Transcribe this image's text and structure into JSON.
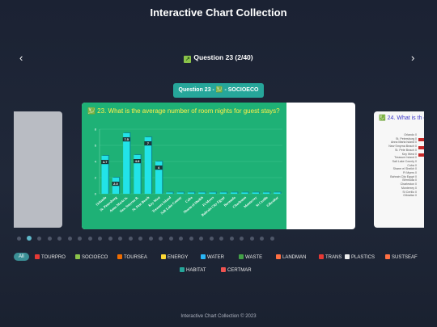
{
  "page": {
    "title": "Interactive Chart Collection",
    "footer": "Interactive Chart Collection © 2023"
  },
  "nav": {
    "prev_icon": "‹",
    "next_icon": "›",
    "question_header": "Question 23 (2/40)",
    "header_icon": "chart-increasing-icon"
  },
  "badge": {
    "text": "Question 23 - 💹 - SOCIOECO"
  },
  "card": {
    "title": "💹 23. What is the average number of room nights for guest stays?"
  },
  "right_card": {
    "title": "💹 24. What is th community on a",
    "labels": [
      "Orlando",
      "St. Petersburg",
      "Anna Maria Island",
      "New Smyrna Beach",
      "St. Pete Beach",
      "Key West",
      "Treasure Island",
      "Salt Lake County",
      "Cuba",
      "Sharm el Sheikh",
      "Ft Myers",
      "Bahrain City Egypt",
      "Bermuda",
      "Charleston",
      "Monterrey",
      "St Cerillo",
      "Gibraltar"
    ],
    "zero": "0"
  },
  "chart_data": {
    "type": "bar",
    "categories": [
      "Orlando",
      "St. Petersburg",
      "Anna Maria Is.",
      "New Smyrna B.",
      "St. Pete Beach",
      "Key West",
      "Treasure Island",
      "Salt Lake County",
      "Cuba",
      "Sharm el Sheikh",
      "Ft Myers",
      "Bahrain City Egypt",
      "Bermuda",
      "Charleston",
      "Monterrey",
      "St Cerillo",
      "Gibraltar"
    ],
    "values": [
      4.7,
      2.0,
      7.5,
      4.8,
      7.0,
      4.0,
      0,
      0,
      0,
      0,
      0,
      0,
      0,
      0,
      0,
      0,
      0
    ],
    "labels": [
      "4.7",
      "2.0",
      "7.5",
      "4.8",
      "7",
      "4",
      "",
      "",
      "",
      "",
      "",
      "",
      "",
      "",
      "",
      "",
      ""
    ],
    "yticks": [
      "0",
      "2",
      "4",
      "6",
      "8"
    ],
    "ylim": [
      0,
      8
    ],
    "title": "",
    "xlabel": "",
    "ylabel": "",
    "colors": {
      "bar": "#22e3e8",
      "label_bg": "#1a1a1a"
    }
  },
  "carousel": {
    "count": 26,
    "active_index": 1
  },
  "filters": [
    {
      "label": "All",
      "active": true,
      "icon": "all"
    },
    {
      "label": "TOURPRO",
      "icon": "magnet-icon",
      "color": "#e53935"
    },
    {
      "label": "SOCIOECO",
      "icon": "chart-increasing-icon",
      "color": "#8bc34a"
    },
    {
      "label": "TOURSEA",
      "icon": "ship-icon",
      "color": "#ef6c00"
    },
    {
      "label": "ENERGY",
      "icon": "sun-icon",
      "color": "#fdd835"
    },
    {
      "label": "WATER",
      "icon": "droplet-icon",
      "color": "#29b6f6"
    },
    {
      "label": "WASTE",
      "icon": "recycle-icon",
      "color": "#43a047"
    },
    {
      "label": "LANDMAN",
      "icon": "map-icon",
      "color": "#ff7043"
    },
    {
      "label": "TRANS",
      "icon": "bus-icon",
      "color": "#e53935"
    },
    {
      "label": "PLASTICS",
      "icon": "bottle-icon",
      "color": "#eeeeee"
    },
    {
      "label": "SUSTSEAF",
      "icon": "shrimp-icon",
      "color": "#ff7043"
    },
    {
      "label": "HABITAT",
      "icon": "habitat-icon",
      "color": "#26a69a"
    },
    {
      "label": "CERTMAR",
      "icon": "sailboat-icon",
      "color": "#ef5350"
    }
  ]
}
